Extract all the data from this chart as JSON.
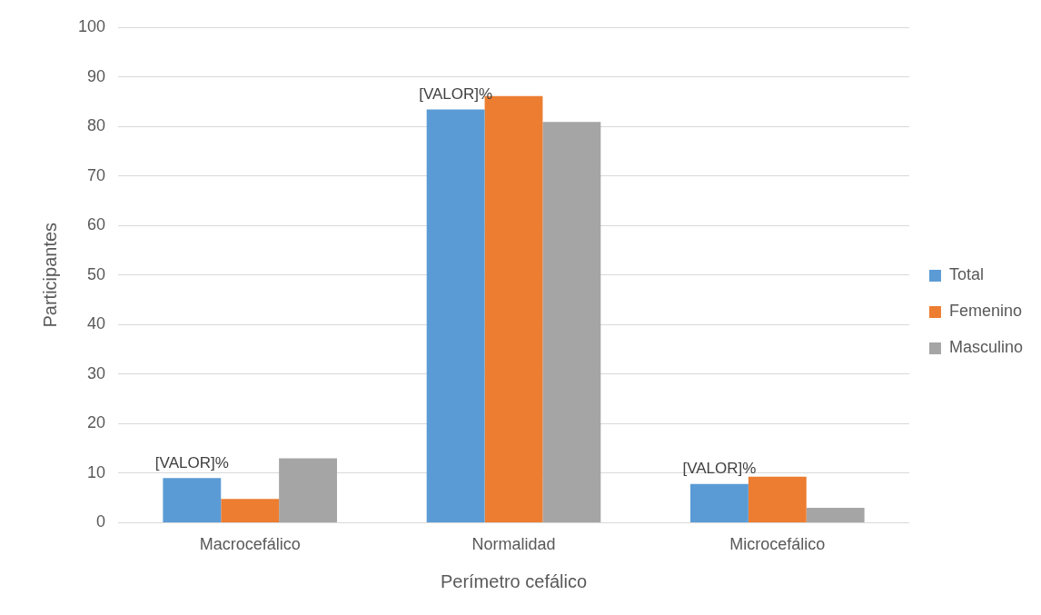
{
  "chart_data": {
    "type": "bar",
    "xlabel": "Perímetro cefálico",
    "ylabel": "Participantes",
    "categories": [
      "Macrocefálico",
      "Normalidad",
      "Microcefálico"
    ],
    "series": [
      {
        "name": "Total",
        "color": "#5b9bd5",
        "values": [
          9.0,
          83.4,
          7.8
        ]
      },
      {
        "name": "Femenino",
        "color": "#ed7d31",
        "values": [
          4.8,
          86.1,
          9.3
        ]
      },
      {
        "name": "Masculino",
        "color": "#a5a5a5",
        "values": [
          13.0,
          80.9,
          3.0
        ]
      }
    ],
    "ylim": [
      0,
      100
    ],
    "yticks": [
      0,
      10,
      20,
      30,
      40,
      50,
      60,
      70,
      80,
      90,
      100
    ],
    "grid": "y",
    "legend": "right",
    "annotations": [
      "[VALOR]%",
      "[VALOR]%",
      "[VALOR]%"
    ]
  }
}
